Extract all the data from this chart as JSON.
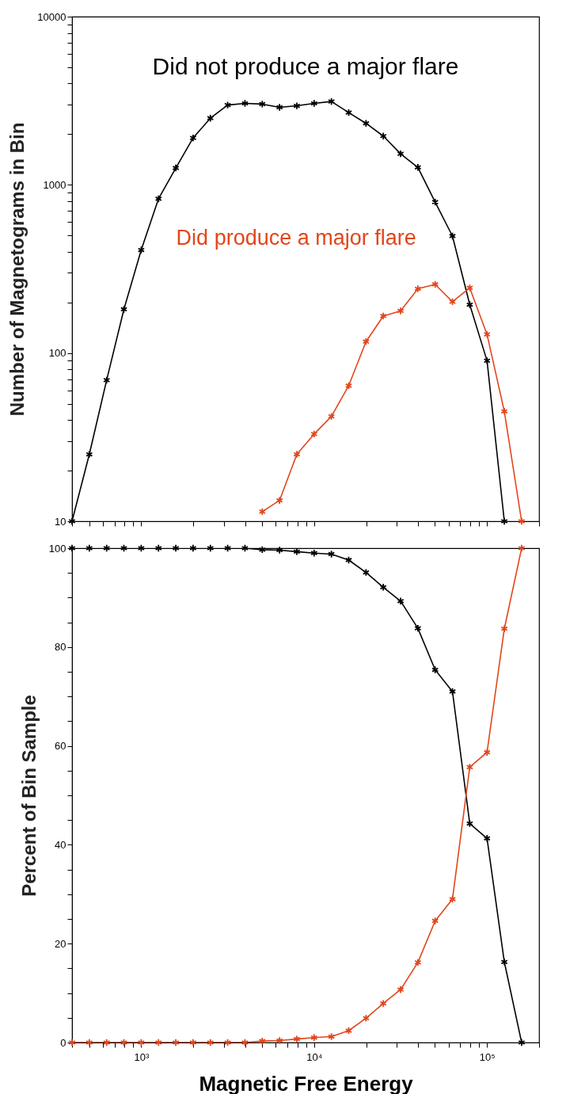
{
  "chart_data": [
    {
      "type": "line",
      "ylabel": "Number of Magnetograms in Bin",
      "log": "xy",
      "marker": "cross",
      "grid": false,
      "tick_labels": "y",
      "xlim": [
        398,
        200000
      ],
      "ylim": [
        10,
        10000
      ],
      "xticks": [
        {
          "value": 400,
          "label": null
        },
        {
          "value": 500,
          "label": null
        },
        {
          "value": 600,
          "label": null
        },
        {
          "value": 700,
          "label": null
        },
        {
          "value": 800,
          "label": null
        },
        {
          "value": 900,
          "label": null
        },
        {
          "value": 1000,
          "label": null
        },
        {
          "value": 2000,
          "label": null
        },
        {
          "value": 3000,
          "label": null
        },
        {
          "value": 4000,
          "label": null
        },
        {
          "value": 5000,
          "label": null
        },
        {
          "value": 6000,
          "label": null
        },
        {
          "value": 7000,
          "label": null
        },
        {
          "value": 8000,
          "label": null
        },
        {
          "value": 9000,
          "label": null
        },
        {
          "value": 10000,
          "label": null
        },
        {
          "value": 20000,
          "label": null
        },
        {
          "value": 30000,
          "label": null
        },
        {
          "value": 40000,
          "label": null
        },
        {
          "value": 50000,
          "label": null
        },
        {
          "value": 60000,
          "label": null
        },
        {
          "value": 70000,
          "label": null
        },
        {
          "value": 80000,
          "label": null
        },
        {
          "value": 90000,
          "label": null
        },
        {
          "value": 100000,
          "label": null
        },
        {
          "value": 200000,
          "label": null
        }
      ],
      "yticks": [
        10,
        {
          "value": 20,
          "label": null
        },
        {
          "value": 30,
          "label": null
        },
        {
          "value": 40,
          "label": null
        },
        {
          "value": 50,
          "label": null
        },
        {
          "value": 60,
          "label": null
        },
        {
          "value": 70,
          "label": null
        },
        {
          "value": 80,
          "label": null
        },
        {
          "value": 90,
          "label": null
        },
        100,
        {
          "value": 200,
          "label": null
        },
        {
          "value": 300,
          "label": null
        },
        {
          "value": 400,
          "label": null
        },
        {
          "value": 500,
          "label": null
        },
        {
          "value": 600,
          "label": null
        },
        {
          "value": 700,
          "label": null
        },
        {
          "value": 800,
          "label": null
        },
        {
          "value": 900,
          "label": null
        },
        1000,
        {
          "value": 2000,
          "label": null
        },
        {
          "value": 3000,
          "label": null
        },
        {
          "value": 4000,
          "label": null
        },
        {
          "value": 5000,
          "label": null
        },
        {
          "value": 6000,
          "label": null
        },
        {
          "value": 7000,
          "label": null
        },
        {
          "value": 8000,
          "label": null
        },
        {
          "value": 9000,
          "label": null
        },
        10000
      ],
      "series": [
        {
          "name": "Did not produce a major flare",
          "color": "#000000",
          "x": [
            398,
            501,
            631,
            794,
            1000,
            1259,
            1585,
            1995,
            2512,
            3162,
            3981,
            5012,
            6310,
            7943,
            10000,
            12589,
            15849,
            19953,
            25119,
            31623,
            39811,
            50119,
            63096,
            79433,
            100000,
            125893
          ],
          "values": [
            10,
            25,
            69,
            182,
            410,
            826,
            1260,
            1900,
            2490,
            2980,
            3050,
            3020,
            2890,
            2950,
            3050,
            3130,
            2690,
            2320,
            1950,
            1530,
            1270,
            790,
            496,
            194,
            90,
            10
          ]
        },
        {
          "name": "Did produce a major flare",
          "color": "#e2461b",
          "x": [
            5012,
            6310,
            7943,
            10000,
            12589,
            15849,
            19953,
            25119,
            31623,
            39811,
            50119,
            63096,
            79433,
            100000,
            125893,
            158489
          ],
          "values": [
            11.4,
            13.3,
            25,
            33,
            42,
            64,
            117,
            166,
            178,
            241,
            256,
            202,
            244,
            129,
            45,
            10
          ]
        }
      ]
    },
    {
      "type": "line",
      "xlabel": "Magnetic Free Energy",
      "ylabel": "Percent of Bin Sample",
      "log": "x",
      "marker": "cross",
      "grid": false,
      "xlim": [
        398,
        200000
      ],
      "ylim": [
        0,
        100
      ],
      "xticks": [
        {
          "value": 400,
          "label": null
        },
        {
          "value": 500,
          "label": null
        },
        {
          "value": 600,
          "label": null
        },
        {
          "value": 700,
          "label": null
        },
        {
          "value": 800,
          "label": null
        },
        {
          "value": 900,
          "label": null
        },
        {
          "value": 1000,
          "label": "10³"
        },
        {
          "value": 2000,
          "label": null
        },
        {
          "value": 3000,
          "label": null
        },
        {
          "value": 4000,
          "label": null
        },
        {
          "value": 5000,
          "label": null
        },
        {
          "value": 6000,
          "label": null
        },
        {
          "value": 7000,
          "label": null
        },
        {
          "value": 8000,
          "label": null
        },
        {
          "value": 9000,
          "label": null
        },
        {
          "value": 10000,
          "label": "10⁴"
        },
        {
          "value": 20000,
          "label": null
        },
        {
          "value": 30000,
          "label": null
        },
        {
          "value": 40000,
          "label": null
        },
        {
          "value": 50000,
          "label": null
        },
        {
          "value": 60000,
          "label": null
        },
        {
          "value": 70000,
          "label": null
        },
        {
          "value": 80000,
          "label": null
        },
        {
          "value": 90000,
          "label": null
        },
        {
          "value": 100000,
          "label": "10⁵"
        },
        {
          "value": 200000,
          "label": null
        }
      ],
      "yticks": [
        0,
        {
          "value": 5,
          "label": null
        },
        {
          "value": 10,
          "label": null
        },
        {
          "value": 15,
          "label": null
        },
        20,
        {
          "value": 25,
          "label": null
        },
        {
          "value": 30,
          "label": null
        },
        {
          "value": 35,
          "label": null
        },
        40,
        {
          "value": 45,
          "label": null
        },
        {
          "value": 50,
          "label": null
        },
        {
          "value": 55,
          "label": null
        },
        60,
        {
          "value": 65,
          "label": null
        },
        {
          "value": 70,
          "label": null
        },
        {
          "value": 75,
          "label": null
        },
        80,
        {
          "value": 85,
          "label": null
        },
        {
          "value": 90,
          "label": null
        },
        {
          "value": 95,
          "label": null
        },
        100
      ],
      "x": [
        398,
        501,
        631,
        794,
        1000,
        1259,
        1585,
        1995,
        2512,
        3162,
        3981,
        5012,
        6310,
        7943,
        10000,
        12589,
        15849,
        19953,
        25119,
        31623,
        39811,
        50119,
        63096,
        79433,
        100000,
        125893,
        158489
      ],
      "series": [
        {
          "color": "#000000",
          "values": [
            100,
            100,
            100,
            100,
            100,
            100,
            100,
            100,
            100,
            100,
            100,
            99.7,
            99.6,
            99.3,
            99.0,
            98.8,
            97.6,
            95.1,
            92.1,
            89.3,
            83.8,
            75.4,
            71.0,
            44.3,
            41.3,
            16.3,
            0
          ]
        },
        {
          "color": "#e2461b",
          "values": [
            0,
            0,
            0,
            0,
            0,
            0,
            0,
            0,
            0,
            0,
            0,
            0.3,
            0.4,
            0.7,
            1.0,
            1.2,
            2.4,
            4.9,
            7.9,
            10.7,
            16.2,
            24.6,
            29.0,
            55.7,
            58.7,
            83.7,
            100
          ]
        }
      ]
    }
  ]
}
